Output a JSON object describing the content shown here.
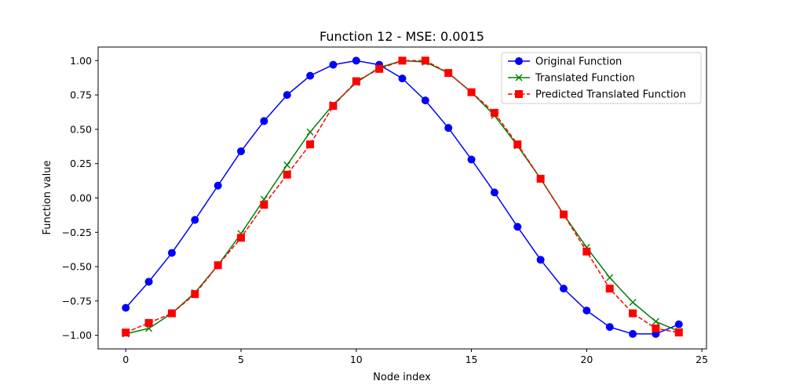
{
  "chart_data": {
    "type": "line",
    "title": "Function 12 - MSE: 0.0015",
    "xlabel": "Node index",
    "ylabel": "Function value",
    "xlim": [
      -1.2,
      25.2
    ],
    "ylim": [
      -1.099,
      1.099
    ],
    "xticks": [
      0,
      5,
      10,
      15,
      20,
      25
    ],
    "xtick_labels": [
      "0",
      "5",
      "10",
      "15",
      "20",
      "25"
    ],
    "yticks": [
      -1.0,
      -0.75,
      -0.5,
      -0.25,
      0.0,
      0.25,
      0.5,
      0.75,
      1.0
    ],
    "ytick_labels": [
      "−1.00",
      "−0.75",
      "−0.50",
      "−0.25",
      "0.00",
      "0.25",
      "0.50",
      "0.75",
      "1.00"
    ],
    "grid": false,
    "legend_position": "top-right",
    "x": [
      0,
      1,
      2,
      3,
      4,
      5,
      6,
      7,
      8,
      9,
      10,
      11,
      12,
      13,
      14,
      15,
      16,
      17,
      18,
      19,
      20,
      21,
      22,
      23,
      24
    ],
    "series": [
      {
        "name": "Original Function",
        "color": "#0000ff",
        "line_style": "solid",
        "marker": "circle",
        "values": [
          -0.8,
          -0.61,
          -0.4,
          -0.16,
          0.09,
          0.34,
          0.56,
          0.75,
          0.89,
          0.97,
          1.0,
          0.97,
          0.87,
          0.71,
          0.51,
          0.28,
          0.04,
          -0.21,
          -0.45,
          -0.66,
          -0.82,
          -0.94,
          -0.99,
          -0.99,
          -0.92
        ]
      },
      {
        "name": "Translated Function",
        "color": "#008000",
        "line_style": "solid",
        "marker": "x",
        "values": [
          -0.99,
          -0.95,
          -0.84,
          -0.69,
          -0.49,
          -0.26,
          -0.01,
          0.24,
          0.48,
          0.68,
          0.84,
          0.95,
          1.0,
          0.99,
          0.91,
          0.77,
          0.6,
          0.38,
          0.14,
          -0.12,
          -0.36,
          -0.58,
          -0.76,
          -0.9,
          -0.97
        ]
      },
      {
        "name": "Predicted Translated Function",
        "color": "#ff0000",
        "line_style": "dashed",
        "marker": "square",
        "values": [
          -0.98,
          -0.91,
          -0.84,
          -0.7,
          -0.49,
          -0.29,
          -0.05,
          0.17,
          0.39,
          0.67,
          0.85,
          0.94,
          1.0,
          1.0,
          0.91,
          0.77,
          0.62,
          0.39,
          0.14,
          -0.12,
          -0.39,
          -0.66,
          -0.84,
          -0.95,
          -0.98
        ]
      }
    ]
  }
}
